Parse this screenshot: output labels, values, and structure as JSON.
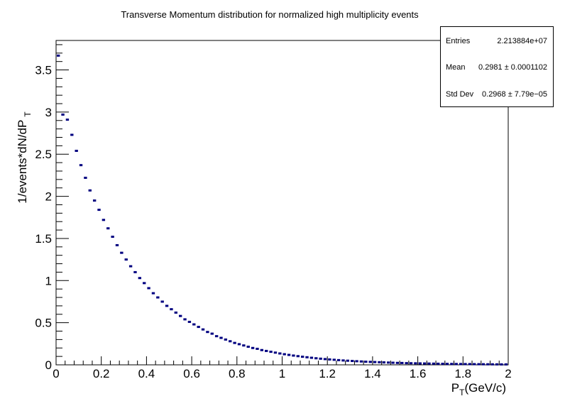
{
  "chart_data": {
    "type": "bar",
    "histogram_style": "horizontal-markers",
    "title": "Transverse Momentum distribution for normalized high multiplicity events",
    "xlabel": "P",
    "xlabel_sub": "T",
    "xlabel_suffix": "(GeV/c)",
    "ylabel": "1/events*dN/dP",
    "ylabel_sub": "T",
    "xlim": [
      0,
      2
    ],
    "ylim": [
      0,
      3.85
    ],
    "bin_width": 0.02,
    "x_ticks": [
      "0",
      "0.2",
      "0.4",
      "0.6",
      "0.8",
      "1",
      "1.2",
      "1.4",
      "1.6",
      "1.8",
      "2"
    ],
    "y_ticks": [
      "0",
      "0.5",
      "1",
      "1.5",
      "2",
      "2.5",
      "3",
      "3.5"
    ],
    "x_tick_values": [
      0,
      0.2,
      0.4,
      0.6,
      0.8,
      1.0,
      1.2,
      1.4,
      1.6,
      1.8,
      2.0
    ],
    "y_tick_values": [
      0,
      0.5,
      1.0,
      1.5,
      2.0,
      2.5,
      3.0,
      3.5
    ],
    "series": [
      {
        "name": "pT",
        "color": "#000080",
        "x": [
          0.01,
          0.03,
          0.05,
          0.07,
          0.09,
          0.11,
          0.13,
          0.15,
          0.17,
          0.19,
          0.21,
          0.23,
          0.25,
          0.27,
          0.29,
          0.31,
          0.33,
          0.35,
          0.37,
          0.39,
          0.41,
          0.43,
          0.45,
          0.47,
          0.49,
          0.51,
          0.53,
          0.55,
          0.57,
          0.59,
          0.61,
          0.63,
          0.65,
          0.67,
          0.69,
          0.71,
          0.73,
          0.75,
          0.77,
          0.79,
          0.81,
          0.83,
          0.85,
          0.87,
          0.89,
          0.91,
          0.93,
          0.95,
          0.97,
          0.99,
          1.01,
          1.03,
          1.05,
          1.07,
          1.09,
          1.11,
          1.13,
          1.15,
          1.17,
          1.19,
          1.21,
          1.23,
          1.25,
          1.27,
          1.29,
          1.31,
          1.33,
          1.35,
          1.37,
          1.39,
          1.41,
          1.43,
          1.45,
          1.47,
          1.49,
          1.51,
          1.53,
          1.55,
          1.57,
          1.59,
          1.61,
          1.63,
          1.65,
          1.67,
          1.69,
          1.71,
          1.73,
          1.75,
          1.77,
          1.79,
          1.81,
          1.83,
          1.85,
          1.87,
          1.89,
          1.91,
          1.93,
          1.95,
          1.97,
          1.99
        ],
        "values": [
          3.67,
          2.97,
          2.91,
          2.73,
          2.54,
          2.37,
          2.22,
          2.07,
          1.95,
          1.84,
          1.72,
          1.62,
          1.52,
          1.42,
          1.33,
          1.25,
          1.17,
          1.1,
          1.03,
          0.97,
          0.91,
          0.85,
          0.8,
          0.75,
          0.7,
          0.66,
          0.62,
          0.58,
          0.54,
          0.51,
          0.48,
          0.45,
          0.42,
          0.39,
          0.37,
          0.34,
          0.32,
          0.3,
          0.28,
          0.26,
          0.245,
          0.23,
          0.215,
          0.2,
          0.19,
          0.175,
          0.165,
          0.155,
          0.145,
          0.135,
          0.126,
          0.118,
          0.11,
          0.103,
          0.096,
          0.09,
          0.084,
          0.078,
          0.073,
          0.068,
          0.064,
          0.06,
          0.056,
          0.052,
          0.049,
          0.046,
          0.043,
          0.04,
          0.037,
          0.035,
          0.033,
          0.031,
          0.029,
          0.027,
          0.025,
          0.023,
          0.022,
          0.02,
          0.019,
          0.018,
          0.017,
          0.016,
          0.015,
          0.014,
          0.013,
          0.012,
          0.011,
          0.0105,
          0.01,
          0.0095,
          0.009,
          0.0085,
          0.008,
          0.0075,
          0.007,
          0.0065,
          0.006,
          0.0055,
          0.005,
          0.005
        ]
      }
    ],
    "stats": {
      "entries_label": "Entries",
      "entries_value": "2.213884e+07",
      "mean_label": "Mean",
      "mean_value": "0.2981 ± 0.0001102",
      "stddev_label": "Std Dev",
      "stddev_value": "0.2968 ± 7.79e−05"
    }
  }
}
